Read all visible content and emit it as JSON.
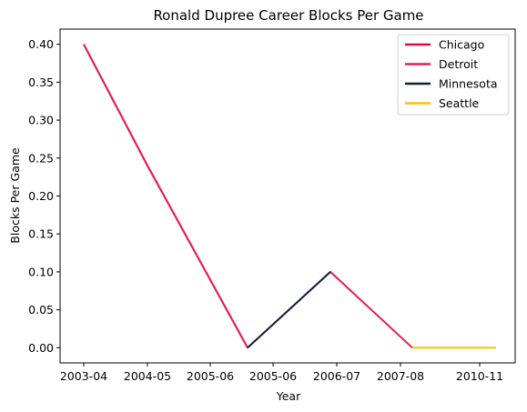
{
  "chart_data": {
    "type": "line",
    "title": "Ronald Dupree Career Blocks Per Game",
    "xlabel": "Year",
    "ylabel": "Blocks Per Game",
    "x_categories": [
      "2003-04",
      "2004-05",
      "2005-06",
      "2005-06",
      "2006-07",
      "2007-08",
      "2010-11"
    ],
    "ylim": [
      -0.02,
      0.42
    ],
    "yticks": [
      0.0,
      0.05,
      0.1,
      0.15,
      0.2,
      0.25,
      0.3,
      0.35,
      0.4
    ],
    "ytick_labels": [
      "0.00",
      "0.05",
      "0.10",
      "0.15",
      "0.20",
      "0.25",
      "0.30",
      "0.35",
      "0.40"
    ],
    "grid": false,
    "legend_position": "top-right",
    "series": [
      {
        "name": "Chicago",
        "color": "#CE1141",
        "points": [
          {
            "x": 0,
            "y": 0.4
          },
          {
            "x": 1,
            "y": 0.24
          },
          {
            "x": 2.0,
            "y": 0.0
          }
        ]
      },
      {
        "name": "Detroit",
        "color": "#E31F4F",
        "points": [
          {
            "x": 0,
            "y": 0.4
          },
          {
            "x": 1,
            "y": 0.24
          },
          {
            "x": 2.0,
            "y": 0.0
          },
          {
            "x": 3.0,
            "y": 0.1
          },
          {
            "x": 4.0,
            "y": 0.0
          }
        ]
      },
      {
        "name": "Minnesota",
        "color": "#0C2340",
        "points": [
          {
            "x": 2.0,
            "y": 0.0
          },
          {
            "x": 3.0,
            "y": 0.1
          }
        ]
      },
      {
        "name": "Seattle",
        "color": "#FFC200",
        "points": [
          {
            "x": 4.0,
            "y": 0.0
          },
          {
            "x": 5.0,
            "y": 0.0
          }
        ]
      }
    ]
  }
}
